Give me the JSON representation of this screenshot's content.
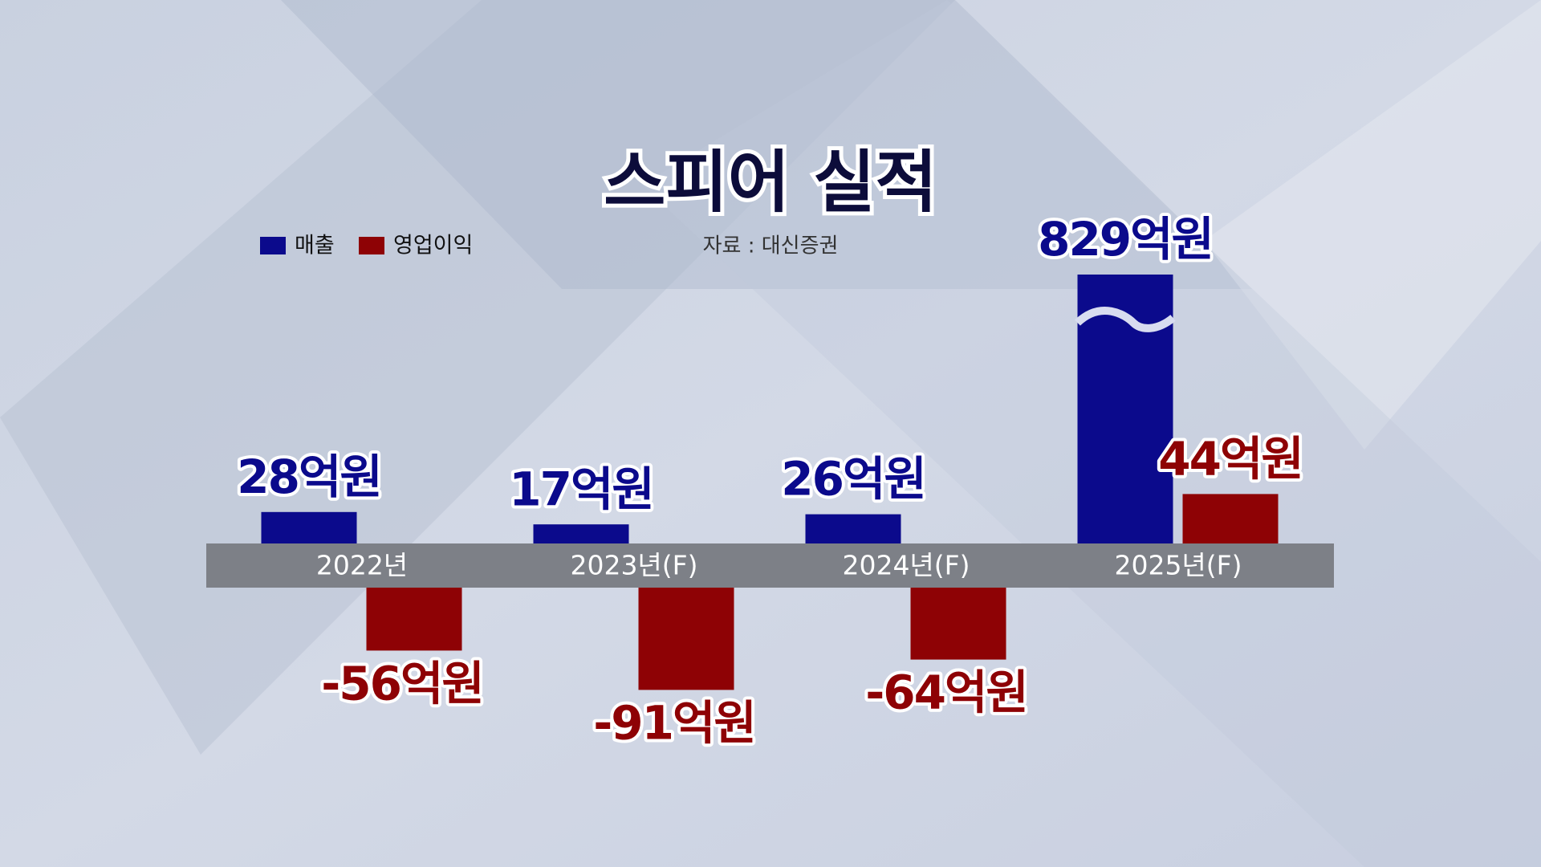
{
  "chart_data": {
    "type": "bar",
    "title": "스피어 실적",
    "source": "자료 : 대신증권",
    "categories": [
      "2022년",
      "2023년(F)",
      "2024년(F)",
      "2025년(F)"
    ],
    "series": [
      {
        "name": "매출",
        "color": "#0b0a8c",
        "values": [
          28,
          17,
          26,
          829
        ],
        "value_labels": [
          "28억원",
          "17억원",
          "26억원",
          "829억원"
        ]
      },
      {
        "name": "영업이익",
        "color": "#8e0205",
        "values": [
          -56,
          -91,
          -64,
          44
        ],
        "value_labels": [
          "-56억원",
          "-91억원",
          "-64억원",
          "44억원"
        ]
      }
    ]
  }
}
